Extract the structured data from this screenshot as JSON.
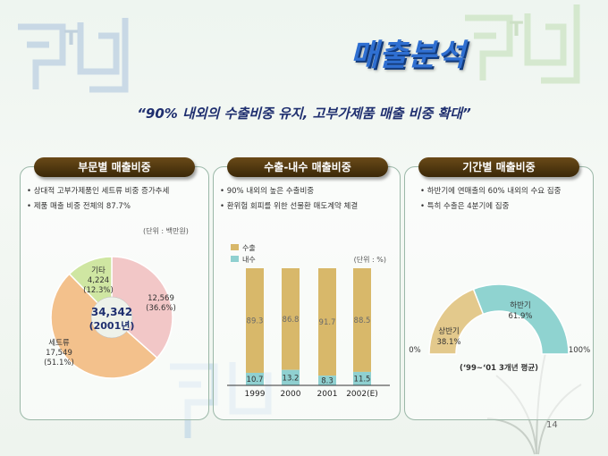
{
  "title": "매출분석",
  "subtitle": "“90% 내외의 수출비중 유지, 고부가제품 매출 비중 확대”",
  "page_number": "14",
  "panels": {
    "division": {
      "header": "부문별 매출비중",
      "bullets": [
        "상대적 고부가제품인 세트류 비중 증가추세",
        "제품 매출 비중 전체의 87.7%"
      ],
      "unit": "(단위 : 백만원)",
      "center_value": "34,342",
      "center_year": "(2001년)",
      "slices": [
        {
          "name": "",
          "value": "12,569",
          "pct": "(36.6%)",
          "share": 36.6,
          "color": "#f2c7c7"
        },
        {
          "name": "세트류",
          "value": "17,549",
          "pct": "(51.1%)",
          "share": 51.1,
          "color": "#f3c18c"
        },
        {
          "name": "기타",
          "value": "4,224",
          "pct": "(12.3%)",
          "share": 12.3,
          "color": "#cfe6a2"
        }
      ]
    },
    "export": {
      "header": "수출-내수 매출비중",
      "bullets": [
        "90% 내외의 높은 수출비중",
        "환위험 회피를 위한 선물환 매도계약 체결"
      ],
      "unit": "(단위 : %)",
      "legend": [
        {
          "label": "수출",
          "color": "#d8b86a"
        },
        {
          "label": "내수",
          "color": "#8fd0d0"
        }
      ]
    },
    "period": {
      "header": "기간별 매출비중",
      "bullets": [
        "하반기에 연매출의 60% 내외의 수요 집중",
        "특히 수출은 4분기에 집중"
      ],
      "low_label": "0%",
      "high_label": "100%",
      "first_half": {
        "label": "상반기",
        "pct": "38.1%",
        "share": 38.1,
        "color": "#e3c98c"
      },
      "second_half": {
        "label": "하반기",
        "pct": "61.9%",
        "share": 61.9,
        "color": "#8fd3d0"
      },
      "caption": "(‘99~‘01 3개년 평균)"
    }
  },
  "chart_data": {
    "type": "bar",
    "categories": [
      "1999",
      "2000",
      "2001",
      "2002(E)"
    ],
    "series": [
      {
        "name": "수출",
        "values": [
          89.3,
          86.8,
          91.7,
          88.5
        ]
      },
      {
        "name": "내수",
        "values": [
          10.7,
          13.2,
          8.3,
          11.5
        ]
      }
    ],
    "ylim": [
      0,
      100
    ],
    "stacked": true
  }
}
